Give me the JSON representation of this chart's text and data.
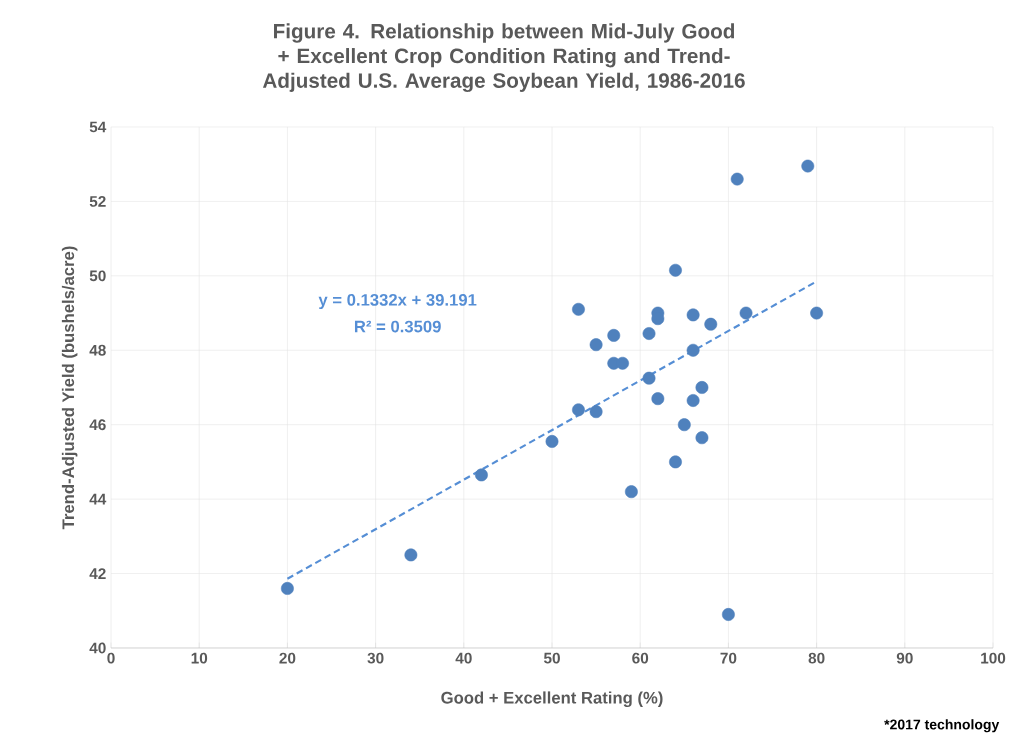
{
  "chart_data": {
    "type": "scatter",
    "title": "Figure 4. Relationship between Mid-July Good + Excellent Crop Condition Rating and Trend-Adjusted U.S. Average Soybean Yield, 1986-2016",
    "xlabel": "Good + Excellent Rating (%)",
    "ylabel": "Trend-Adjusted Yield (bushels/acre)",
    "xlim": [
      0,
      100
    ],
    "ylim": [
      40,
      54
    ],
    "xticks": [
      0,
      10,
      20,
      30,
      40,
      50,
      60,
      70,
      80,
      90,
      100
    ],
    "yticks": [
      40,
      42,
      44,
      46,
      48,
      50,
      52,
      54
    ],
    "grid": true,
    "series": [
      {
        "type": "scatter",
        "color": "#4f81bd",
        "marker": "circle",
        "x": [
          20,
          34,
          42,
          50,
          53,
          55,
          53,
          55,
          57,
          57,
          58,
          59,
          61,
          61,
          62,
          62,
          62,
          64,
          64,
          65,
          66,
          66,
          66,
          67,
          67,
          68,
          70,
          71,
          72,
          79,
          80
        ],
        "values": [
          41.6,
          42.5,
          44.65,
          45.55,
          46.4,
          46.35,
          49.1,
          48.15,
          48.4,
          47.65,
          47.65,
          44.2,
          48.45,
          47.25,
          49.0,
          48.85,
          46.7,
          50.15,
          45.0,
          46.0,
          48.95,
          48.0,
          46.65,
          47.0,
          45.65,
          48.7,
          40.9,
          52.6,
          49.0,
          52.95,
          49.0
        ]
      },
      {
        "type": "line",
        "color": "#558ed5",
        "line_style": "dashed",
        "marker": "none",
        "x": [
          20,
          80
        ],
        "values": [
          41.86,
          49.85
        ]
      }
    ],
    "annotations": [
      "y = 0.1332x + 39.191",
      "R² = 0.3509",
      "*2017 technology"
    ]
  }
}
